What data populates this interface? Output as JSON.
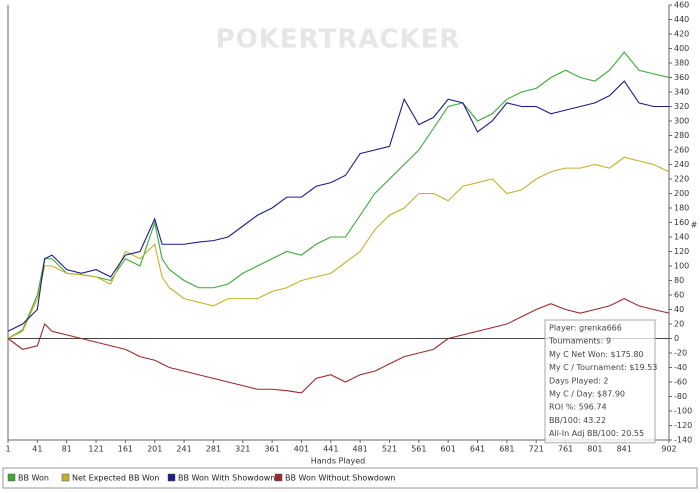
{
  "chart_data": {
    "type": "line",
    "watermark": "POKERTRACKER",
    "x_label": "Hands Played",
    "y_label": "#",
    "x": [
      1,
      21,
      41,
      51,
      61,
      81,
      101,
      121,
      141,
      161,
      181,
      201,
      211,
      221,
      241,
      261,
      281,
      301,
      321,
      341,
      361,
      381,
      401,
      421,
      441,
      461,
      481,
      501,
      521,
      541,
      561,
      581,
      601,
      621,
      641,
      661,
      681,
      701,
      721,
      741,
      761,
      781,
      801,
      821,
      841,
      861,
      881,
      902
    ],
    "series": [
      {
        "name": "BB Won",
        "color": "#3aaa35",
        "values": [
          0,
          12,
          60,
          110,
          110,
          90,
          88,
          85,
          80,
          110,
          100,
          160,
          110,
          95,
          80,
          70,
          70,
          75,
          90,
          100,
          110,
          120,
          115,
          130,
          140,
          140,
          170,
          200,
          220,
          240,
          260,
          290,
          320,
          325,
          300,
          310,
          330,
          340,
          345,
          360,
          370,
          360,
          355,
          370,
          395,
          370,
          365,
          360
        ]
      },
      {
        "name": "Net Expected BB Won",
        "color": "#c4b12a",
        "values": [
          0,
          10,
          55,
          100,
          100,
          90,
          88,
          85,
          75,
          120,
          110,
          130,
          85,
          70,
          55,
          50,
          45,
          55,
          55,
          55,
          65,
          70,
          80,
          85,
          90,
          105,
          120,
          150,
          170,
          180,
          200,
          200,
          190,
          210,
          215,
          220,
          200,
          205,
          220,
          230,
          235,
          235,
          240,
          235,
          250,
          245,
          240,
          230
        ]
      },
      {
        "name": "BB Won With Showdown",
        "color": "#1c1c8a",
        "values": [
          10,
          20,
          40,
          110,
          115,
          95,
          90,
          95,
          85,
          115,
          120,
          165,
          130,
          130,
          130,
          133,
          135,
          140,
          155,
          170,
          180,
          195,
          195,
          210,
          215,
          225,
          255,
          260,
          265,
          330,
          295,
          305,
          330,
          325,
          285,
          300,
          325,
          320,
          320,
          310,
          315,
          320,
          325,
          335,
          355,
          325,
          320,
          320
        ]
      },
      {
        "name": "BB Won Without Showdown",
        "color": "#a02828",
        "values": [
          0,
          -15,
          -10,
          20,
          10,
          5,
          0,
          -5,
          -10,
          -15,
          -25,
          -30,
          -35,
          -40,
          -45,
          -50,
          -55,
          -60,
          -65,
          -70,
          -70,
          -72,
          -75,
          -55,
          -50,
          -60,
          -50,
          -45,
          -35,
          -25,
          -20,
          -15,
          0,
          5,
          10,
          15,
          20,
          30,
          40,
          48,
          40,
          35,
          40,
          45,
          55,
          45,
          40,
          35
        ]
      }
    ],
    "xlim": [
      1,
      902
    ],
    "xticks": [
      1,
      41,
      81,
      121,
      161,
      201,
      241,
      281,
      321,
      361,
      401,
      441,
      481,
      521,
      561,
      601,
      641,
      681,
      721,
      761,
      801,
      841,
      902
    ],
    "ylim": [
      -140,
      460
    ],
    "yticks": [
      -140,
      -120,
      -100,
      -80,
      -60,
      -40,
      -20,
      0,
      20,
      40,
      60,
      80,
      100,
      120,
      140,
      160,
      180,
      200,
      220,
      240,
      260,
      280,
      300,
      320,
      340,
      360,
      380,
      400,
      420,
      440,
      460
    ],
    "info_box": [
      "Player: grenka666",
      "Tournaments: 9",
      "My C Net Won: $175.80",
      "My C / Tournament: $19.53",
      "Days Played: 2",
      "My C / Day: $87.90",
      "ROI %: 596.74",
      "BB/100: 43.22",
      "All-In Adj BB/100: 20.55"
    ]
  }
}
